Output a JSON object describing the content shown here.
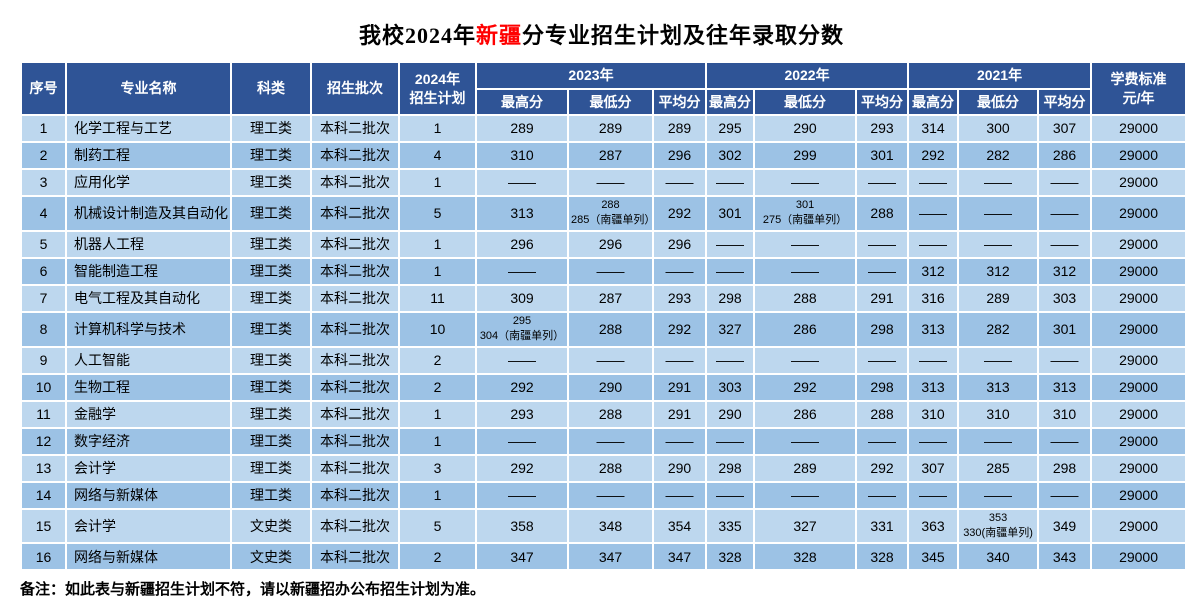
{
  "page": {
    "title": {
      "prefix": "我校2024年",
      "highlight": "新疆",
      "suffix": "分专业招生计划及往年录取分数"
    },
    "note": "备注：如此表与新疆招生计划不符，请以新疆招办公布招生计划为准。"
  },
  "table": {
    "headers": {
      "seq": "序号",
      "major": "专业名称",
      "category": "科类",
      "batch": "招生批次",
      "plan2024": "2024年\n招生计划",
      "year2023": "2023年",
      "year2022": "2022年",
      "year2021": "2021年",
      "max": "最高分",
      "min": "最低分",
      "avg": "平均分",
      "tuition": "学费标准\n元/年"
    },
    "rows": [
      {
        "seq": "1",
        "major": "化学工程与工艺",
        "category": "理工类",
        "batch": "本科二批次",
        "plan": "1",
        "s2023": [
          "289",
          "289",
          "289"
        ],
        "s2022": [
          "295",
          "290",
          "293"
        ],
        "s2021": [
          "314",
          "300",
          "307"
        ],
        "tuition": "29000"
      },
      {
        "seq": "2",
        "major": "制药工程",
        "category": "理工类",
        "batch": "本科二批次",
        "plan": "4",
        "s2023": [
          "310",
          "287",
          "296"
        ],
        "s2022": [
          "302",
          "299",
          "301"
        ],
        "s2021": [
          "292",
          "282",
          "286"
        ],
        "tuition": "29000"
      },
      {
        "seq": "3",
        "major": "应用化学",
        "category": "理工类",
        "batch": "本科二批次",
        "plan": "1",
        "s2023": [
          "——",
          "——",
          "——"
        ],
        "s2022": [
          "——",
          "——",
          "——"
        ],
        "s2021": [
          "——",
          "——",
          "——"
        ],
        "tuition": "29000"
      },
      {
        "seq": "4",
        "major": "机械设计制造及其自动化",
        "category": "理工类",
        "batch": "本科二批次",
        "plan": "5",
        "s2023": [
          "313",
          "288\n285（南疆单列）",
          "292"
        ],
        "s2022": [
          "301",
          "301\n275（南疆单列）",
          "288"
        ],
        "s2021": [
          "——",
          "——",
          "——"
        ],
        "tuition": "29000"
      },
      {
        "seq": "5",
        "major": "机器人工程",
        "category": "理工类",
        "batch": "本科二批次",
        "plan": "1",
        "s2023": [
          "296",
          "296",
          "296"
        ],
        "s2022": [
          "——",
          "——",
          "——"
        ],
        "s2021": [
          "——",
          "——",
          "——"
        ],
        "tuition": "29000"
      },
      {
        "seq": "6",
        "major": "智能制造工程",
        "category": "理工类",
        "batch": "本科二批次",
        "plan": "1",
        "s2023": [
          "——",
          "——",
          "——"
        ],
        "s2022": [
          "——",
          "——",
          "——"
        ],
        "s2021": [
          "312",
          "312",
          "312"
        ],
        "tuition": "29000"
      },
      {
        "seq": "7",
        "major": "电气工程及其自动化",
        "category": "理工类",
        "batch": "本科二批次",
        "plan": "11",
        "s2023": [
          "309",
          "287",
          "293"
        ],
        "s2022": [
          "298",
          "288",
          "291"
        ],
        "s2021": [
          "316",
          "289",
          "303"
        ],
        "tuition": "29000"
      },
      {
        "seq": "8",
        "major": "计算机科学与技术",
        "category": "理工类",
        "batch": "本科二批次",
        "plan": "10",
        "s2023": [
          "295\n304（南疆单列）",
          "288",
          "292"
        ],
        "s2022": [
          "327",
          "286",
          "298"
        ],
        "s2021": [
          "313",
          "282",
          "301"
        ],
        "tuition": "29000"
      },
      {
        "seq": "9",
        "major": "人工智能",
        "category": "理工类",
        "batch": "本科二批次",
        "plan": "2",
        "s2023": [
          "——",
          "——",
          "——"
        ],
        "s2022": [
          "——",
          "——",
          "——"
        ],
        "s2021": [
          "——",
          "——",
          "——"
        ],
        "tuition": "29000"
      },
      {
        "seq": "10",
        "major": "生物工程",
        "category": "理工类",
        "batch": "本科二批次",
        "plan": "2",
        "s2023": [
          "292",
          "290",
          "291"
        ],
        "s2022": [
          "303",
          "292",
          "298"
        ],
        "s2021": [
          "313",
          "313",
          "313"
        ],
        "tuition": "29000"
      },
      {
        "seq": "11",
        "major": "金融学",
        "category": "理工类",
        "batch": "本科二批次",
        "plan": "1",
        "s2023": [
          "293",
          "288",
          "291"
        ],
        "s2022": [
          "290",
          "286",
          "288"
        ],
        "s2021": [
          "310",
          "310",
          "310"
        ],
        "tuition": "29000"
      },
      {
        "seq": "12",
        "major": "数字经济",
        "category": "理工类",
        "batch": "本科二批次",
        "plan": "1",
        "s2023": [
          "——",
          "——",
          "——"
        ],
        "s2022": [
          "——",
          "——",
          "——"
        ],
        "s2021": [
          "——",
          "——",
          "——"
        ],
        "tuition": "29000"
      },
      {
        "seq": "13",
        "major": "会计学",
        "category": "理工类",
        "batch": "本科二批次",
        "plan": "3",
        "s2023": [
          "292",
          "288",
          "290"
        ],
        "s2022": [
          "298",
          "289",
          "292"
        ],
        "s2021": [
          "307",
          "285",
          "298"
        ],
        "tuition": "29000"
      },
      {
        "seq": "14",
        "major": "网络与新媒体",
        "category": "理工类",
        "batch": "本科二批次",
        "plan": "1",
        "s2023": [
          "——",
          "——",
          "——"
        ],
        "s2022": [
          "——",
          "——",
          "——"
        ],
        "s2021": [
          "——",
          "——",
          "——"
        ],
        "tuition": "29000"
      },
      {
        "seq": "15",
        "major": "会计学",
        "category": "文史类",
        "batch": "本科二批次",
        "plan": "5",
        "s2023": [
          "358",
          "348",
          "354"
        ],
        "s2022": [
          "335",
          "327",
          "331"
        ],
        "s2021": [
          "363",
          "353\n330(南疆单列)",
          "349"
        ],
        "tuition": "29000"
      },
      {
        "seq": "16",
        "major": "网络与新媒体",
        "category": "文史类",
        "batch": "本科二批次",
        "plan": "2",
        "s2023": [
          "347",
          "347",
          "347"
        ],
        "s2022": [
          "328",
          "328",
          "328"
        ],
        "s2021": [
          "345",
          "340",
          "343"
        ],
        "tuition": "29000"
      }
    ]
  },
  "colors": {
    "header_bg": "#2F5496",
    "header_text": "#FFFFFF",
    "row_light": "#BDD7EE",
    "row_dark": "#9CC2E5",
    "grid": "#FFFFFF",
    "highlight_red": "#FF0000",
    "text": "#000000"
  }
}
